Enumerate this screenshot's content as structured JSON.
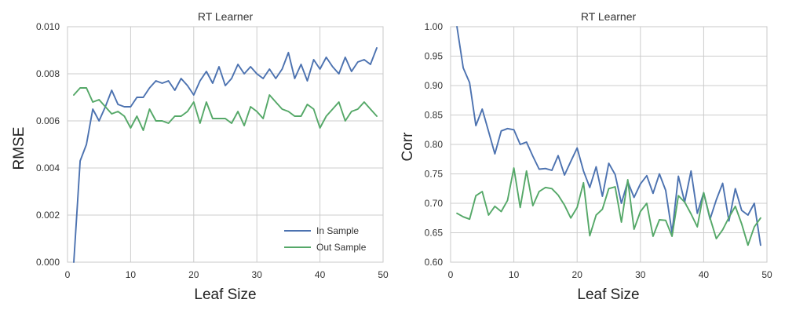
{
  "colors": {
    "in_sample": "#4c72b0",
    "out_sample": "#55a868"
  },
  "chart_data": [
    {
      "type": "line",
      "title": "RT Learner",
      "xlabel": "Leaf Size",
      "ylabel": "RMSE",
      "xlim": [
        0,
        50
      ],
      "ylim": [
        0.0,
        0.01
      ],
      "xticks": [
        0,
        10,
        20,
        30,
        40,
        50
      ],
      "yticks": [
        0.0,
        0.002,
        0.004,
        0.006,
        0.008,
        0.01
      ],
      "xtick_labels": [
        "0",
        "10",
        "20",
        "30",
        "40",
        "50"
      ],
      "ytick_labels": [
        "0.000",
        "0.002",
        "0.004",
        "0.006",
        "0.008",
        "0.010"
      ],
      "grid": true,
      "legend": "lower-right",
      "series": [
        {
          "name": "In Sample",
          "color": "#4c72b0",
          "x": [
            1,
            2,
            3,
            4,
            5,
            6,
            7,
            8,
            9,
            10,
            11,
            12,
            13,
            14,
            15,
            16,
            17,
            18,
            19,
            20,
            21,
            22,
            23,
            24,
            25,
            26,
            27,
            28,
            29,
            30,
            31,
            32,
            33,
            34,
            35,
            36,
            37,
            38,
            39,
            40,
            41,
            42,
            43,
            44,
            45,
            46,
            47,
            48,
            49
          ],
          "y": [
            0.0,
            0.0043,
            0.005,
            0.0065,
            0.006,
            0.0066,
            0.0073,
            0.0067,
            0.0066,
            0.0066,
            0.007,
            0.007,
            0.0074,
            0.0077,
            0.0076,
            0.0077,
            0.0073,
            0.0078,
            0.0075,
            0.0071,
            0.0077,
            0.0081,
            0.0076,
            0.0083,
            0.0075,
            0.0078,
            0.0084,
            0.008,
            0.0083,
            0.008,
            0.0078,
            0.0082,
            0.0078,
            0.0082,
            0.0089,
            0.0078,
            0.0084,
            0.0077,
            0.0086,
            0.0082,
            0.0087,
            0.0083,
            0.008,
            0.0087,
            0.0081,
            0.0085,
            0.0086,
            0.0084,
            0.0091
          ]
        },
        {
          "name": "Out Sample",
          "color": "#55a868",
          "x": [
            1,
            2,
            3,
            4,
            5,
            6,
            7,
            8,
            9,
            10,
            11,
            12,
            13,
            14,
            15,
            16,
            17,
            18,
            19,
            20,
            21,
            22,
            23,
            24,
            25,
            26,
            27,
            28,
            29,
            30,
            31,
            32,
            33,
            34,
            35,
            36,
            37,
            38,
            39,
            40,
            41,
            42,
            43,
            44,
            45,
            46,
            47,
            48,
            49
          ],
          "y": [
            0.0071,
            0.0074,
            0.0074,
            0.0068,
            0.0069,
            0.0066,
            0.0063,
            0.0064,
            0.0062,
            0.0057,
            0.0062,
            0.0056,
            0.0065,
            0.006,
            0.006,
            0.0059,
            0.0062,
            0.0062,
            0.0064,
            0.0068,
            0.0059,
            0.0068,
            0.0061,
            0.0061,
            0.0061,
            0.0059,
            0.0064,
            0.0058,
            0.0066,
            0.0064,
            0.0061,
            0.0071,
            0.0068,
            0.0065,
            0.0064,
            0.0062,
            0.0062,
            0.0067,
            0.0065,
            0.0057,
            0.0062,
            0.0065,
            0.0068,
            0.006,
            0.0064,
            0.0065,
            0.0068,
            0.0065,
            0.0062
          ]
        }
      ]
    },
    {
      "type": "line",
      "title": "RT Learner",
      "xlabel": "Leaf Size",
      "ylabel": "Corr",
      "xlim": [
        0,
        50
      ],
      "ylim": [
        0.6,
        1.0
      ],
      "xticks": [
        0,
        10,
        20,
        30,
        40,
        50
      ],
      "yticks": [
        0.6,
        0.65,
        0.7,
        0.75,
        0.8,
        0.85,
        0.9,
        0.95,
        1.0
      ],
      "xtick_labels": [
        "0",
        "10",
        "20",
        "30",
        "40",
        "50"
      ],
      "ytick_labels": [
        "0.60",
        "0.65",
        "0.70",
        "0.75",
        "0.80",
        "0.85",
        "0.90",
        "0.95",
        "1.00"
      ],
      "grid": true,
      "legend": "none",
      "series": [
        {
          "name": "In Sample",
          "color": "#4c72b0",
          "x": [
            1,
            2,
            3,
            4,
            5,
            6,
            7,
            8,
            9,
            10,
            11,
            12,
            13,
            14,
            15,
            16,
            17,
            18,
            19,
            20,
            21,
            22,
            23,
            24,
            25,
            26,
            27,
            28,
            29,
            30,
            31,
            32,
            33,
            34,
            35,
            36,
            37,
            38,
            39,
            40,
            41,
            42,
            43,
            44,
            45,
            46,
            47,
            48,
            49
          ],
          "y": [
            1.0,
            0.93,
            0.905,
            0.832,
            0.86,
            0.822,
            0.784,
            0.823,
            0.827,
            0.825,
            0.8,
            0.804,
            0.78,
            0.758,
            0.759,
            0.756,
            0.781,
            0.748,
            0.771,
            0.794,
            0.755,
            0.727,
            0.762,
            0.712,
            0.768,
            0.749,
            0.7,
            0.737,
            0.71,
            0.733,
            0.747,
            0.717,
            0.75,
            0.722,
            0.65,
            0.746,
            0.702,
            0.755,
            0.683,
            0.718,
            0.673,
            0.706,
            0.734,
            0.67,
            0.725,
            0.688,
            0.68,
            0.7,
            0.629
          ]
        },
        {
          "name": "Out Sample",
          "color": "#55a868",
          "x": [
            1,
            2,
            3,
            4,
            5,
            6,
            7,
            8,
            9,
            10,
            11,
            12,
            13,
            14,
            15,
            16,
            17,
            18,
            19,
            20,
            21,
            22,
            23,
            24,
            25,
            26,
            27,
            28,
            29,
            30,
            31,
            32,
            33,
            34,
            35,
            36,
            37,
            38,
            39,
            40,
            41,
            42,
            43,
            44,
            45,
            46,
            47,
            48,
            49
          ],
          "y": [
            0.683,
            0.677,
            0.673,
            0.713,
            0.72,
            0.68,
            0.695,
            0.686,
            0.705,
            0.76,
            0.693,
            0.755,
            0.696,
            0.72,
            0.727,
            0.725,
            0.714,
            0.697,
            0.675,
            0.693,
            0.735,
            0.645,
            0.68,
            0.69,
            0.725,
            0.728,
            0.668,
            0.74,
            0.656,
            0.686,
            0.7,
            0.644,
            0.672,
            0.671,
            0.644,
            0.713,
            0.702,
            0.682,
            0.66,
            0.718,
            0.675,
            0.64,
            0.655,
            0.676,
            0.695,
            0.665,
            0.629,
            0.66,
            0.675
          ]
        }
      ]
    }
  ]
}
